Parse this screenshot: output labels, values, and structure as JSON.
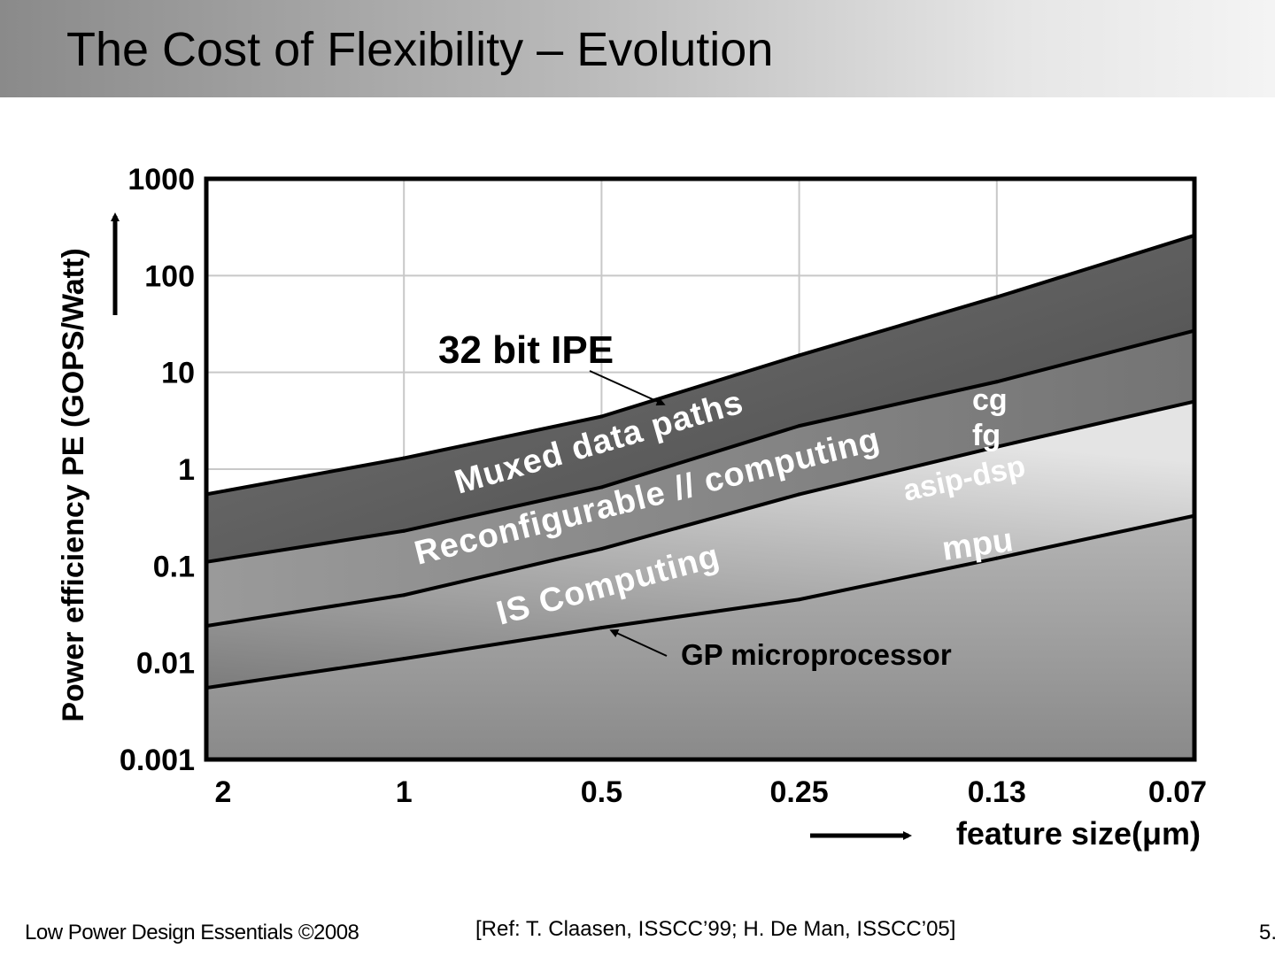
{
  "slide": {
    "title": "The Cost of Flexibility – Evolution",
    "footer_left": "Low Power Design Essentials ©2008",
    "footer_ref": "[Ref: T. Claasen, ISSCC’99; H. De Man, ISSCC’05]",
    "page_number": "5."
  },
  "chart_data": {
    "type": "area",
    "title": "",
    "xlabel": "feature size(μm)",
    "ylabel": "Power efficiency PE (GOPS/Watt)",
    "y_scale": "log",
    "ylim": [
      0.001,
      1000
    ],
    "grid": true,
    "categories": [
      "2",
      "1",
      "0.5",
      "0.25",
      "0.13",
      "0.07"
    ],
    "y_ticks": [
      "1000",
      "100",
      "10",
      "1",
      "0.1",
      "0.01",
      "0.001"
    ],
    "series": [
      {
        "name": "32 bit IPE",
        "x": [
          0,
          1,
          2,
          3,
          4,
          5
        ],
        "values": [
          0.55,
          1.3,
          3.5,
          15,
          60,
          260
        ]
      },
      {
        "name": "cg",
        "x": [
          0,
          1,
          2,
          3,
          4,
          5
        ],
        "values": [
          0.11,
          0.23,
          0.65,
          2.8,
          8,
          27
        ]
      },
      {
        "name": "asip-dsp",
        "x": [
          0,
          1,
          2,
          3,
          4,
          5
        ],
        "values": [
          0.024,
          0.05,
          0.15,
          0.55,
          1.7,
          5
        ]
      },
      {
        "name": "GP microprocessor",
        "x": [
          0,
          1,
          2,
          3,
          4,
          5
        ],
        "values": [
          0.0055,
          0.011,
          0.023,
          0.045,
          0.12,
          0.33
        ]
      }
    ],
    "band_labels": [
      "Muxed data paths",
      "Reconfigurable // computing",
      "IS Computing"
    ],
    "annotations": [
      "32 bit IPE",
      "GP microprocessor",
      "cg",
      "fg",
      "asip-dsp",
      "mpu"
    ],
    "colors": {
      "band_top": "#5a5a5a",
      "band_mid": "#7e7e7e",
      "band_low_light": "#dcdcdc",
      "band_low_dark": "#7a7a7a",
      "bottom_band_light": "#b0b0b0",
      "bottom_band_dark": "#8c8c8c",
      "grid": "#c8c8c8",
      "frame": "#000000"
    }
  }
}
